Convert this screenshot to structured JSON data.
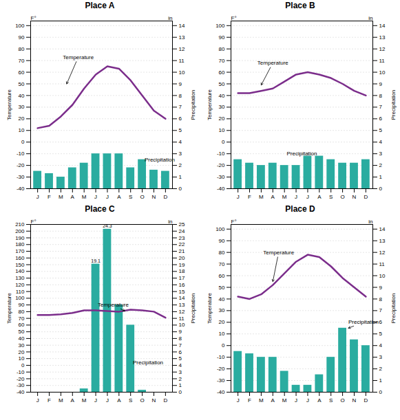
{
  "chart_data": [
    {
      "type": "bar",
      "title": "Place A",
      "categories": [
        "J",
        "F",
        "M",
        "A",
        "M",
        "J",
        "J",
        "A",
        "S",
        "O",
        "N",
        "D"
      ],
      "ylabel": "Temperature",
      "y2label": "Precipitation",
      "yunit": "F°",
      "y2unit": "in",
      "ylim": [
        -40,
        104
      ],
      "yticks": [
        -40,
        -30,
        -20,
        -10,
        0,
        10,
        20,
        30,
        40,
        50,
        60,
        70,
        80,
        90,
        100
      ],
      "y2lim": [
        0,
        14.4
      ],
      "y2ticks": [
        0,
        1,
        2,
        3,
        4,
        5,
        6,
        7,
        8,
        9,
        10,
        11,
        12,
        13,
        14
      ],
      "grid": true,
      "series": [
        {
          "type": "bar",
          "axis": "y2",
          "color": "#2aaca0",
          "values": [
            1.5,
            1.3,
            1.0,
            1.8,
            2.2,
            3.0,
            3.0,
            3.0,
            1.8,
            2.5,
            1.6,
            1.5
          ]
        },
        {
          "type": "line",
          "color": "#7b2d8b",
          "values": [
            12,
            14,
            22,
            32,
            46,
            58,
            65,
            63,
            53,
            40,
            27,
            20
          ]
        }
      ],
      "annotations": [
        {
          "text": "Temperature",
          "x": 3.5,
          "y": 73,
          "arrow_x": 2.5,
          "arrow_y": 50
        },
        {
          "text": "Precipitation",
          "x": 10.5,
          "y": -15,
          "arrow_x": 9.5,
          "arrow_y": -17
        }
      ]
    },
    {
      "type": "bar",
      "title": "Place B",
      "categories": [
        "J",
        "F",
        "M",
        "A",
        "M",
        "J",
        "J",
        "A",
        "S",
        "O",
        "N",
        "D"
      ],
      "ylabel": "Temperature",
      "y2label": "Precipitation",
      "yunit": "F°",
      "y2unit": "in",
      "ylim": [
        -40,
        104
      ],
      "yticks": [
        -40,
        -30,
        -20,
        -10,
        0,
        10,
        20,
        30,
        40,
        50,
        60,
        70,
        80,
        90,
        100
      ],
      "y2lim": [
        0,
        14.4
      ],
      "y2ticks": [
        0,
        1,
        2,
        3,
        4,
        5,
        6,
        7,
        8,
        9,
        10,
        11,
        12,
        13,
        14
      ],
      "grid": true,
      "series": [
        {
          "type": "bar",
          "axis": "y2",
          "color": "#2aaca0",
          "values": [
            2.5,
            2.2,
            2.0,
            2.2,
            2.0,
            2.0,
            2.8,
            2.8,
            2.5,
            2.2,
            2.2,
            2.5
          ]
        },
        {
          "type": "line",
          "color": "#7b2d8b",
          "values": [
            42,
            42,
            44,
            46,
            52,
            58,
            60,
            58,
            55,
            50,
            44,
            40
          ]
        }
      ],
      "annotations": [
        {
          "text": "Temperature",
          "x": 3.0,
          "y": 68,
          "arrow_x": 2.0,
          "arrow_y": 49
        },
        {
          "text": "Precipitation",
          "x": 5.5,
          "y": -10,
          "arrow_x": 7.5,
          "arrow_y": -12
        }
      ]
    },
    {
      "type": "bar",
      "title": "Place C",
      "categories": [
        "J",
        "F",
        "M",
        "A",
        "M",
        "J",
        "J",
        "A",
        "S",
        "O",
        "N",
        "D"
      ],
      "ylabel": "Temperature",
      "y2label": "Precipitation",
      "yunit": "F°",
      "y2unit": "in",
      "ylim": [
        -40,
        210
      ],
      "yticks": [
        -40,
        -30,
        -20,
        -10,
        0,
        10,
        20,
        30,
        40,
        50,
        60,
        70,
        80,
        90,
        100,
        110,
        120,
        130,
        140,
        150,
        160,
        170,
        180,
        190,
        200,
        210
      ],
      "y2lim": [
        0,
        25
      ],
      "y2ticks": [
        0,
        1,
        2,
        3,
        4,
        5,
        6,
        7,
        8,
        9,
        10,
        11,
        12,
        13,
        14,
        15,
        16,
        17,
        18,
        19,
        20,
        21,
        22,
        23,
        24,
        25
      ],
      "grid": true,
      "series": [
        {
          "type": "bar",
          "axis": "y2",
          "color": "#2aaca0",
          "values": [
            0.0,
            0.0,
            0.0,
            0.0,
            0.5,
            19.1,
            24.3,
            13.0,
            10.0,
            0.3,
            0.0,
            0.0
          ],
          "value_labels": [
            null,
            null,
            null,
            null,
            null,
            "19.1",
            "24.3",
            null,
            null,
            null,
            null,
            null
          ]
        },
        {
          "type": "line",
          "color": "#7b2d8b",
          "values": [
            75,
            75,
            76,
            78,
            82,
            82,
            81,
            80,
            83,
            82,
            80,
            71
          ]
        }
      ],
      "annotations": [
        {
          "text": "Temperature",
          "x": 6.5,
          "y": 90,
          "arrow_x": 7.5,
          "arrow_y": 81
        },
        {
          "text": "Precipitation",
          "x": 9.5,
          "y": 4,
          "arrow_x": 9.0,
          "arrow_y": 0
        }
      ]
    },
    {
      "type": "bar",
      "title": "Place D",
      "categories": [
        "J",
        "F",
        "M",
        "A",
        "M",
        "J",
        "J",
        "A",
        "S",
        "O",
        "N",
        "D"
      ],
      "ylabel": "Temperature",
      "y2label": "Precipitation",
      "yunit": "F°",
      "y2unit": "in",
      "ylim": [
        -40,
        104
      ],
      "yticks": [
        -40,
        -30,
        -20,
        -10,
        0,
        10,
        20,
        30,
        40,
        50,
        60,
        70,
        80,
        90,
        100
      ],
      "y2lim": [
        0,
        14.4
      ],
      "y2ticks": [
        0,
        1,
        2,
        3,
        4,
        5,
        6,
        7,
        8,
        9,
        10,
        11,
        12,
        13,
        14
      ],
      "grid": true,
      "series": [
        {
          "type": "bar",
          "axis": "y2",
          "color": "#2aaca0",
          "values": [
            3.5,
            3.3,
            3.0,
            3.0,
            1.8,
            0.6,
            0.6,
            1.5,
            3.0,
            5.5,
            4.5,
            4.0
          ]
        },
        {
          "type": "line",
          "color": "#7b2d8b",
          "values": [
            42,
            40,
            44,
            52,
            62,
            72,
            78,
            76,
            68,
            58,
            50,
            42
          ]
        }
      ],
      "annotations": [
        {
          "text": "Temperature",
          "x": 3.5,
          "y": 80,
          "arrow_x": 3.0,
          "arrow_y": 55
        },
        {
          "text": "Precipitation",
          "x": 10.8,
          "y": 20,
          "arrow_x": 9.5,
          "arrow_y": 15
        }
      ]
    }
  ]
}
